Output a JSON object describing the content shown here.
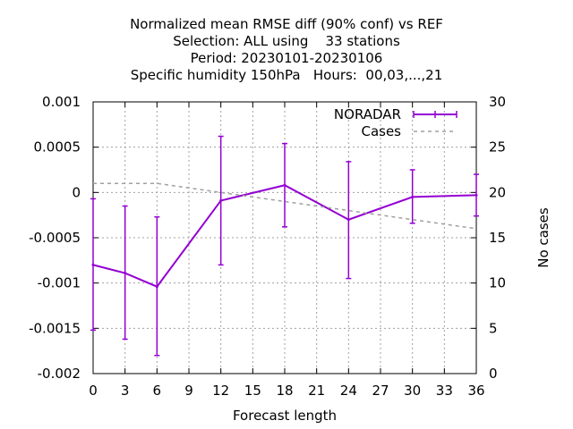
{
  "chart_data": {
    "type": "line",
    "title_lines": [
      "Normalized mean RMSE diff (90% conf) vs REF",
      "Selection: ALL using    33 stations",
      "Period: 20230101-20230106",
      "Specific humidity 150hPa   Hours:  00,03,...,21"
    ],
    "xlabel": "Forecast length",
    "ylabel": "",
    "y2label": "No cases",
    "xlim": [
      0,
      36
    ],
    "ylim": [
      -0.002,
      0.001
    ],
    "y2lim": [
      0,
      30
    ],
    "x_ticks": [
      0,
      3,
      6,
      9,
      12,
      15,
      18,
      21,
      24,
      27,
      30,
      33,
      36
    ],
    "y_ticks": [
      {
        "v": -0.002,
        "label": "-0.002"
      },
      {
        "v": -0.0015,
        "label": "-0.0015"
      },
      {
        "v": -0.001,
        "label": "-0.001"
      },
      {
        "v": -0.0005,
        "label": "-0.0005"
      },
      {
        "v": 0,
        "label": "0"
      },
      {
        "v": 0.0005,
        "label": "0.0005"
      },
      {
        "v": 0.001,
        "label": "0.001"
      }
    ],
    "y2_ticks": [
      0,
      5,
      10,
      15,
      20,
      25,
      30
    ],
    "grid": true,
    "legend_position": "top-right",
    "series": [
      {
        "name": "NORADAR",
        "color": "#9400d3",
        "axis": "y",
        "style": "line-errorbars",
        "x": [
          0,
          3,
          6,
          12,
          18,
          24,
          30,
          36
        ],
        "y": [
          -0.0008,
          -0.00089,
          -0.00104,
          -9e-05,
          8e-05,
          -0.0003,
          -5e-05,
          -3e-05
        ],
        "err_low": [
          -0.00152,
          -0.00162,
          -0.0018,
          -0.0008,
          -0.00038,
          -0.00095,
          -0.00034,
          -0.00026
        ],
        "err_high": [
          -7e-05,
          -0.00015,
          -0.00027,
          0.00062,
          0.00054,
          0.00034,
          0.00025,
          0.0002
        ]
      },
      {
        "name": "Cases",
        "color": "#a0a0a0",
        "axis": "y2",
        "style": "dashed",
        "x": [
          0,
          6,
          12,
          18,
          24,
          30,
          36
        ],
        "y": [
          21,
          21,
          20,
          19,
          18,
          17,
          16
        ]
      }
    ]
  }
}
